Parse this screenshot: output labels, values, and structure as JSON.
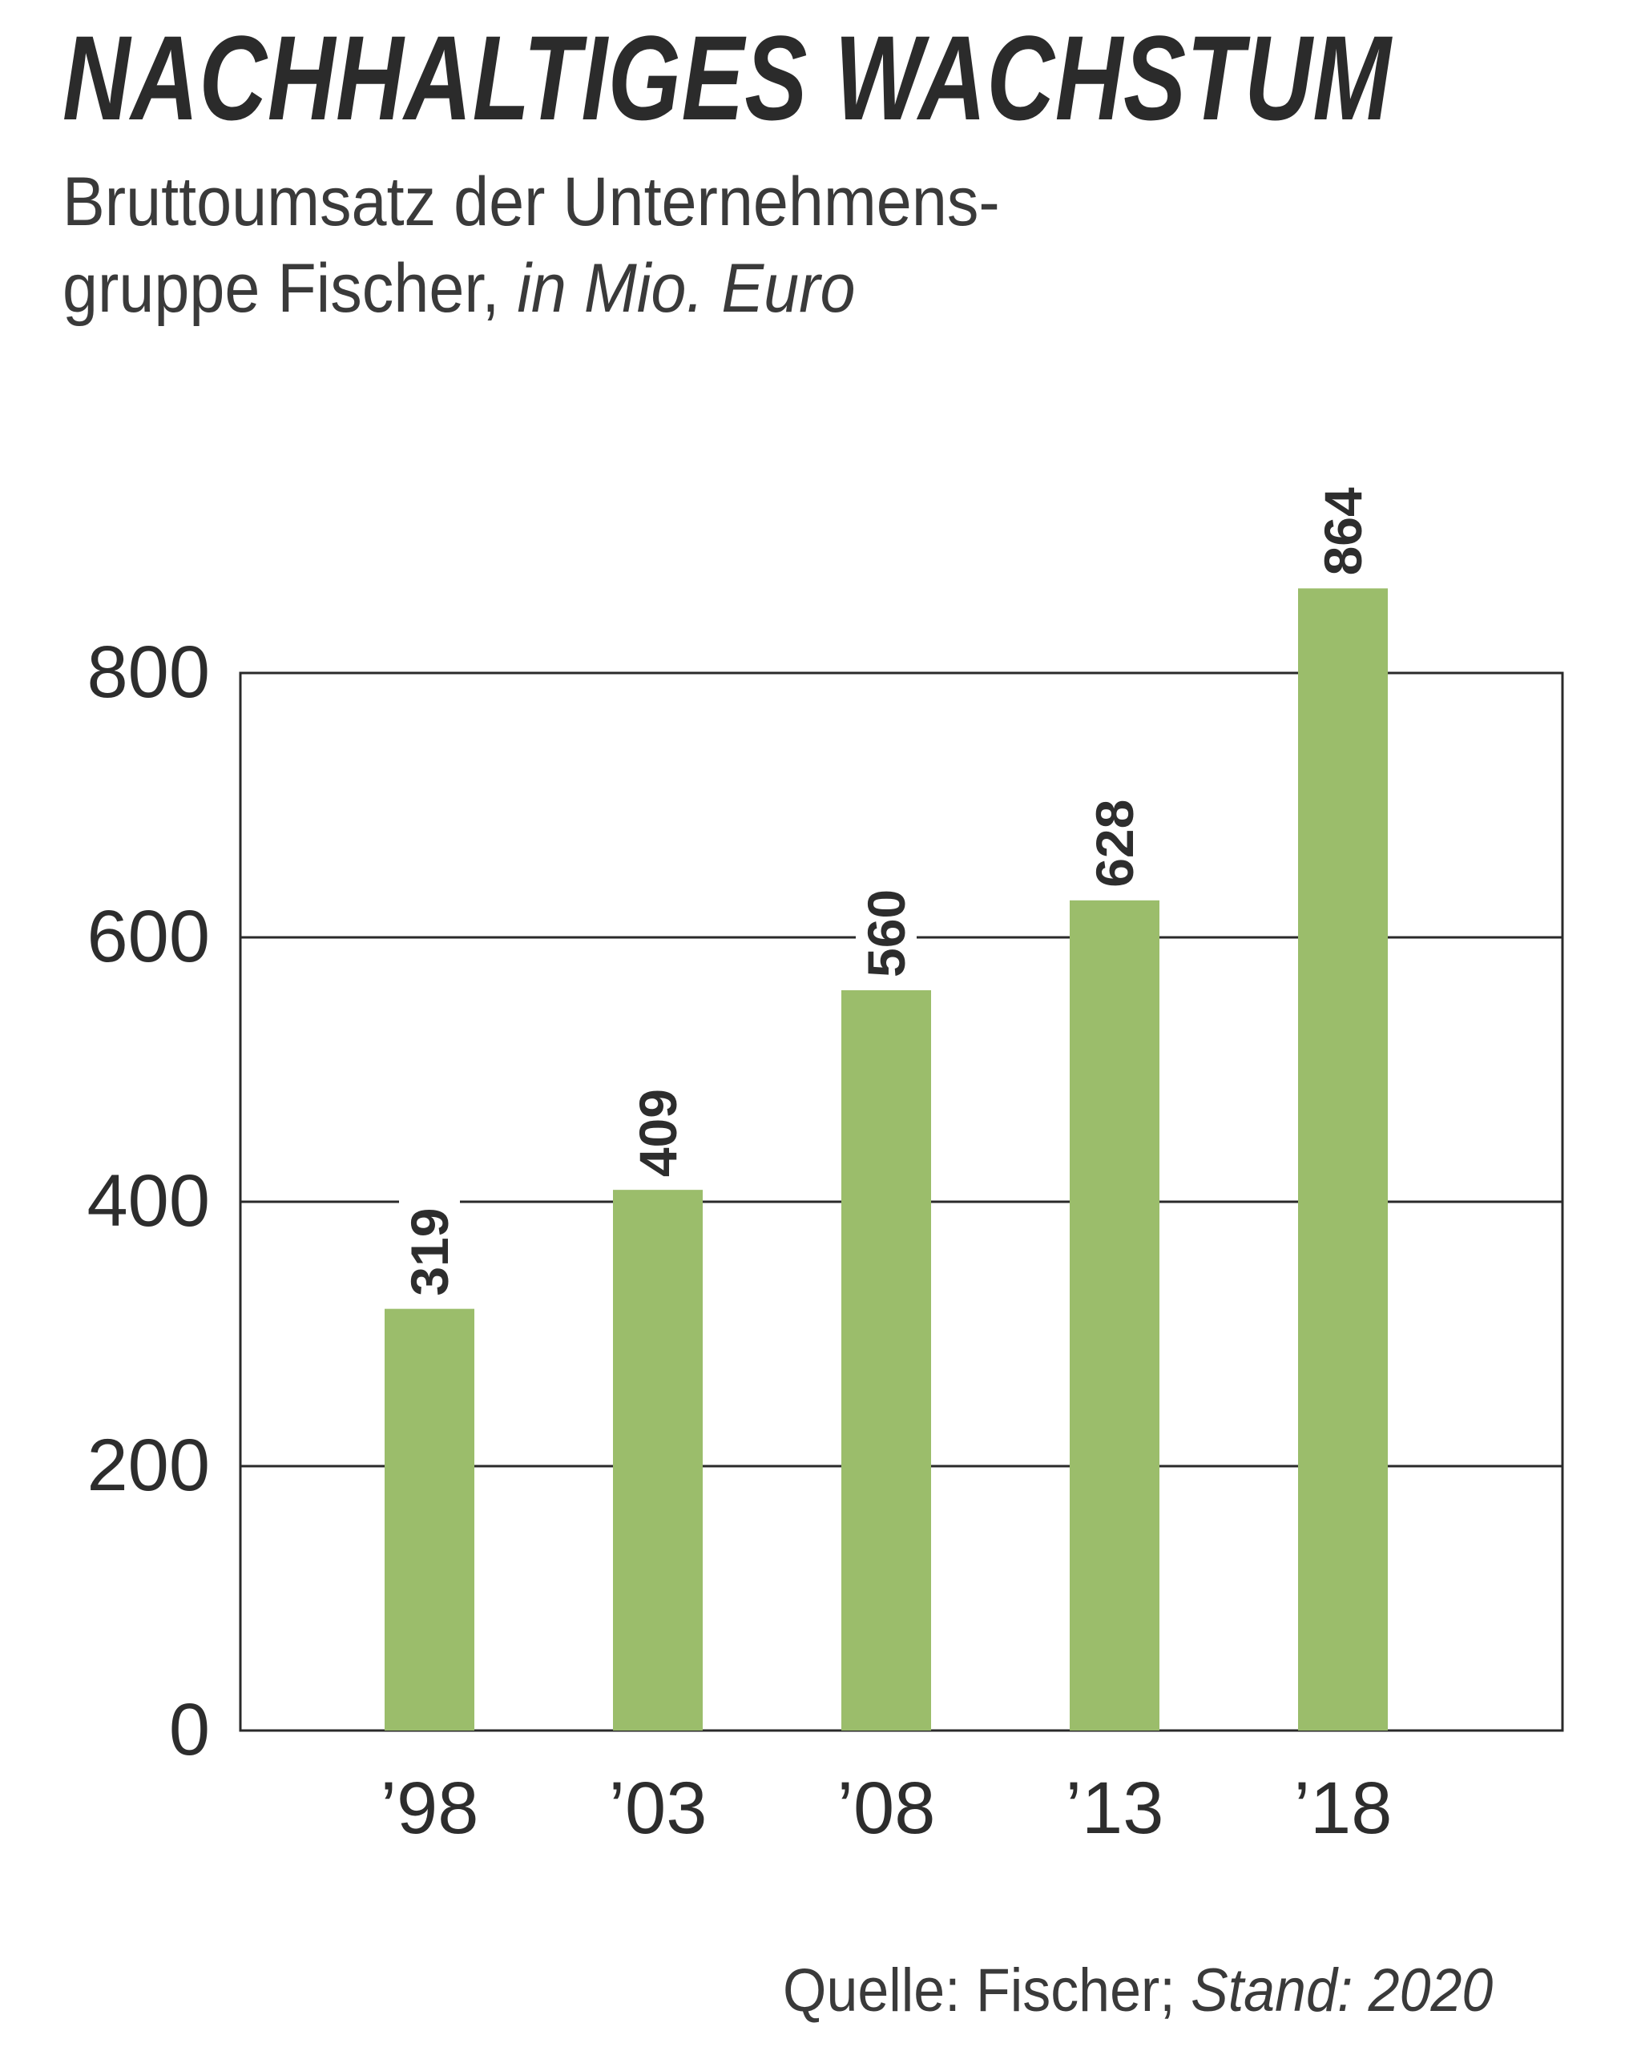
{
  "colors": {
    "bar": "#9bbd6b",
    "grid": "#2a2a2a",
    "text": "#2d2d2d"
  },
  "source": {
    "label": "Quelle: Fischer;",
    "stand": "Stand: 2020"
  },
  "chart_data": {
    "type": "bar",
    "title": "NACHHALTIGES WACHSTUM",
    "subtitle_line1": "Bruttoumsatz der Unternehmens-",
    "subtitle_line2": "gruppe Fischer,",
    "unit": "in Mio. Euro",
    "categories": [
      "’98",
      "’03",
      "’08",
      "’13",
      "’18"
    ],
    "values": [
      319,
      409,
      560,
      628,
      864
    ],
    "value_labels": [
      "319",
      "409",
      "560",
      "628",
      "864"
    ],
    "yticks": [
      0,
      200,
      400,
      600,
      800
    ],
    "ytick_labels": [
      "0",
      "200",
      "400",
      "600",
      "800"
    ],
    "ylim": [
      0,
      800
    ],
    "grid": true,
    "legend": "none"
  }
}
